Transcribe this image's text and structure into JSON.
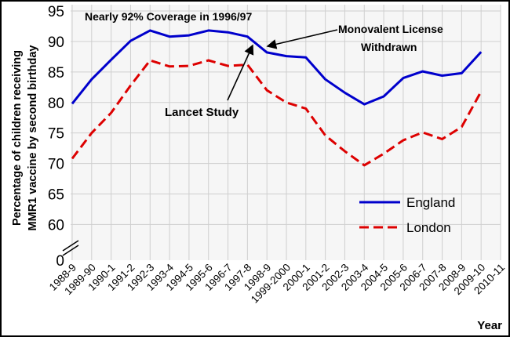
{
  "chart_data": {
    "type": "line",
    "ylabel_line1": "Percentage of children receiving",
    "ylabel_line2": "MMR1 vaccine by second birthday",
    "xlabel": "Year",
    "x": [
      "1988-9",
      "1989-90",
      "1990-1",
      "1991-2",
      "1992-3",
      "1993-4",
      "1994-5",
      "1995-6",
      "1996-7",
      "1997-8",
      "1998-9",
      "1999-2000",
      "2000-1",
      "2001-2",
      "2002-3",
      "2003-4",
      "2004-5",
      "2005-6",
      "2006-7",
      "2007-8",
      "2008-9",
      "2009-10",
      "2010-11"
    ],
    "yticks": [
      60,
      65,
      70,
      75,
      80,
      85,
      90,
      95
    ],
    "ybreak_tick": 0,
    "ylim": [
      58,
      95
    ],
    "series": [
      {
        "name": "England",
        "color": "#0000cc",
        "dash": "solid",
        "values": [
          79.8,
          83.8,
          87,
          90.1,
          91.8,
          90.8,
          91,
          91.8,
          91.5,
          90.8,
          88.2,
          87.6,
          87.4,
          83.8,
          81.6,
          79.7,
          81,
          84,
          85.1,
          84.4,
          84.8,
          88.3,
          null
        ]
      },
      {
        "name": "London",
        "color": "#dd0000",
        "dash": "dashed",
        "values": [
          70.8,
          75,
          78.3,
          82.8,
          86.9,
          85.9,
          86,
          86.9,
          86,
          86.2,
          82,
          80,
          79,
          74.6,
          72,
          69.7,
          71.6,
          73.8,
          75.1,
          74,
          76,
          81.8,
          null
        ]
      }
    ],
    "annotations": {
      "coverage": "Nearly 92% Coverage in 1996/97",
      "license_line1": "Monovalent License",
      "license_line2": "Withdrawn",
      "lancet": "Lancet Study"
    },
    "legend_position": "lower-right",
    "grid": true
  }
}
